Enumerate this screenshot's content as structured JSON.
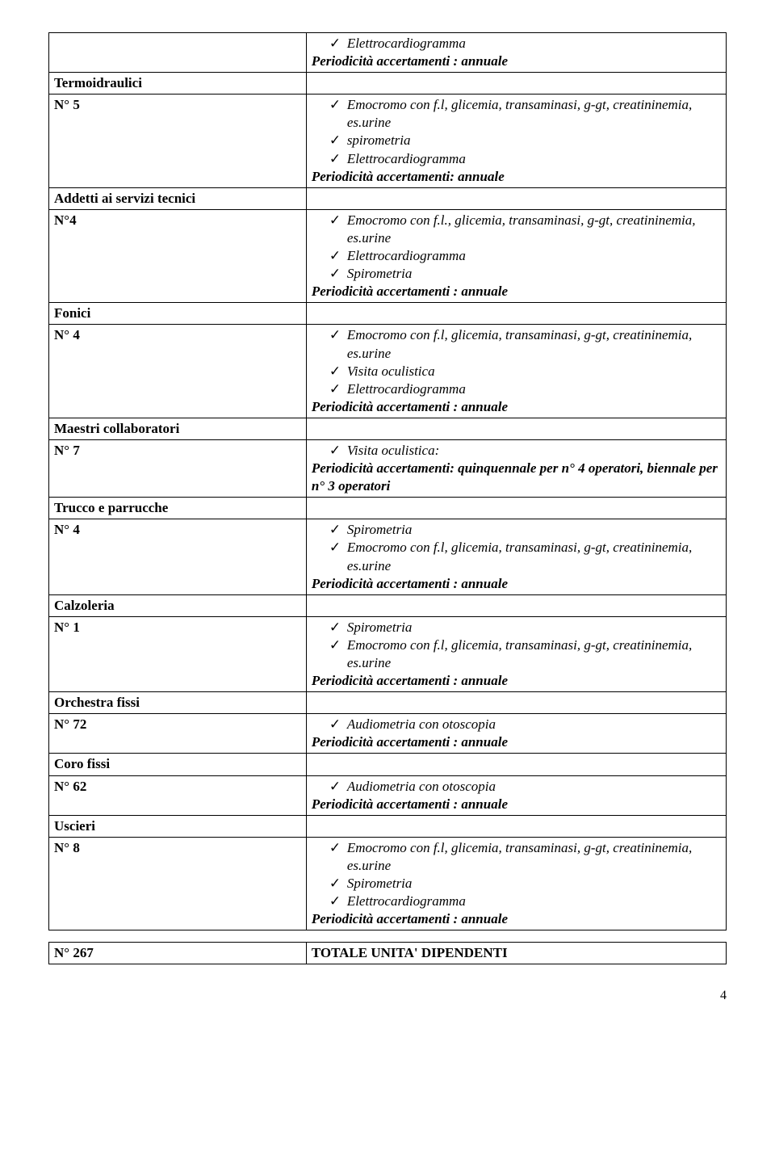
{
  "rows": [
    {
      "left_html": "",
      "right_items": [
        "Elettrocardiogramma"
      ],
      "right_footer_html": "<span class='bolditalic'>Periodicità accertamenti : annuale</span>"
    },
    {
      "left_html": "<span class='bold'>Termoidraulici</span>",
      "right_items": [],
      "right_footer_html": ""
    },
    {
      "left_html": "<span class='bold'>N° 5</span>",
      "right_items": [
        "Emocromo con f.l, glicemia, transaminasi, g-gt, creatininemia, es.urine",
        "spirometria",
        "Elettrocardiogramma"
      ],
      "right_footer_html": "<span class='bolditalic'>Periodicità accertamenti: annuale</span>"
    },
    {
      "left_html": "<span class='bold'>Addetti ai servizi tecnici</span>",
      "right_items": [],
      "right_footer_html": ""
    },
    {
      "left_html": "<span class='bold'>N°4</span>",
      "right_items": [
        "Emocromo con f.l., glicemia, transaminasi, g-gt, creatininemia, es.urine",
        "Elettrocardiogramma",
        "Spirometria"
      ],
      "right_footer_html": "<span class='bolditalic'>Periodicità accertamenti : annuale</span>"
    },
    {
      "left_html": "<span class='bold'>Fonici</span>",
      "right_items": [],
      "right_footer_html": ""
    },
    {
      "left_html": "<span class='bold'>N° 4</span>",
      "right_items": [
        "Emocromo con f.l, glicemia, transaminasi, g-gt, creatininemia, es.urine",
        "Visita oculistica",
        "Elettrocardiogramma"
      ],
      "right_footer_html": "<span class='bolditalic'>Periodicità accertamenti : annuale</span>"
    },
    {
      "left_html": "<span class='bold'>Maestri collaboratori</span>",
      "right_items": [],
      "right_footer_html": ""
    },
    {
      "left_html": "<span class='bold'>N° 7</span>",
      "right_items": [
        "Visita oculistica:"
      ],
      "right_footer_html": "<span class='bolditalic'>Periodicità accertamenti: quinquennale per n° 4 operatori, biennale per n° 3 operatori</span>"
    },
    {
      "left_html": "<span class='bold'>Trucco e parrucche</span>",
      "right_items": [],
      "right_footer_html": ""
    },
    {
      "left_html": "<span class='bold'>N° 4</span>",
      "right_items": [
        "Spirometria",
        "Emocromo con f.l, glicemia, transaminasi, g-gt, creatininemia, es.urine"
      ],
      "right_footer_html": "<span class='bolditalic'>Periodicità accertamenti : annuale</span>"
    },
    {
      "left_html": "<span class='bold'>Calzoleria</span>",
      "right_items": [],
      "right_footer_html": ""
    },
    {
      "left_html": "<span class='bold'>N° 1</span>",
      "right_items": [
        "Spirometria",
        "Emocromo con f.l, glicemia, transaminasi, g-gt, creatininemia, es.urine"
      ],
      "right_footer_html": "<span class='bolditalic'>Periodicità accertamenti : annuale</span>"
    },
    {
      "left_html": "<span class='bold'>Orchestra fissi</span>",
      "right_items": [],
      "right_footer_html": ""
    },
    {
      "left_html": "<span class='bold'>N° 72</span>",
      "right_items": [
        "Audiometria con otoscopia"
      ],
      "right_footer_html": "<span class='bolditalic'>Periodicità accertamenti : annuale</span>"
    },
    {
      "left_html": "<span class='bold'>Coro fissi</span>",
      "right_items": [],
      "right_footer_html": ""
    },
    {
      "left_html": "<span class='bold'>N° 62</span>",
      "right_items": [
        "Audiometria con otoscopia"
      ],
      "right_footer_html": "<span class='bolditalic'>Periodicità accertamenti : annuale</span>"
    },
    {
      "left_html": "<span class='bold'>Uscieri</span>",
      "right_items": [],
      "right_footer_html": ""
    },
    {
      "left_html": "<span class='bold'>N° 8</span>",
      "right_items": [
        "Emocromo con f.l, glicemia, transaminasi, g-gt, creatininemia, es.urine",
        "Spirometria",
        "Elettrocardiogramma"
      ],
      "right_footer_html": "<span class='bolditalic'>Periodicità accertamenti : annuale</span>"
    }
  ],
  "summary": {
    "left": "N° 267",
    "right": "TOTALE UNITA' DIPENDENTI"
  },
  "page_number": "4"
}
